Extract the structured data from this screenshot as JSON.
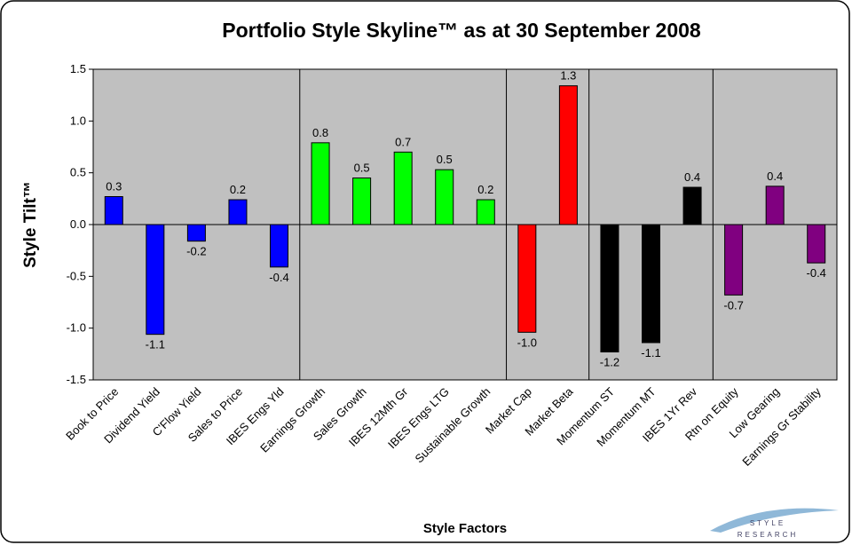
{
  "chart_data": {
    "type": "bar",
    "title": "Portfolio Style Skyline™ as at 30 September 2008",
    "y_label": "Style Tilt™",
    "x_label": "Style Factors",
    "categories": [
      "Book to Price",
      "Dividend Yield",
      "C'Flow Yield",
      "Sales to Price",
      "IBES Engs Yld",
      "Earnings Growth",
      "Sales Growth",
      "IBES 12Mth Gr",
      "IBES Engs LTG",
      "Sustainable Growth",
      "Market Cap",
      "Market Beta",
      "Momentum ST",
      "Momentum MT",
      "IBES 1Yr Rev",
      "Rtn on Equity",
      "Low Gearing",
      "Earnings Gr Stability"
    ],
    "values": [
      0.27,
      -1.06,
      -0.16,
      0.24,
      -0.41,
      0.79,
      0.45,
      0.7,
      0.53,
      0.24,
      -1.04,
      1.34,
      -1.23,
      -1.14,
      0.36,
      -0.68,
      0.37,
      -0.37
    ],
    "value_labels": [
      "0.3",
      "-1.1",
      "-0.2",
      "0.2",
      "-0.4",
      "0.8",
      "0.5",
      "0.7",
      "0.5",
      "0.2",
      "-1.0",
      "1.3",
      "-1.2",
      "-1.1",
      "0.4",
      "-0.7",
      "0.4",
      "-0.4"
    ],
    "colors": [
      "#0000ff",
      "#0000ff",
      "#0000ff",
      "#0000ff",
      "#0000ff",
      "#00ff00",
      "#00ff00",
      "#00ff00",
      "#00ff00",
      "#00ff00",
      "#ff0000",
      "#ff0000",
      "#000000",
      "#000000",
      "#000000",
      "#800080",
      "#800080",
      "#800080"
    ],
    "ylim": [
      -1.5,
      1.5
    ],
    "yticks": [
      1.5,
      {
        "value": 1,
        "label": "1.0"
      },
      0.5,
      {
        "value": 0,
        "label": "0.0"
      },
      -0.5,
      {
        "value": -1,
        "label": "-1.0"
      },
      -1.5
    ],
    "logo": [
      "STYLE",
      "RESEARCH"
    ]
  }
}
